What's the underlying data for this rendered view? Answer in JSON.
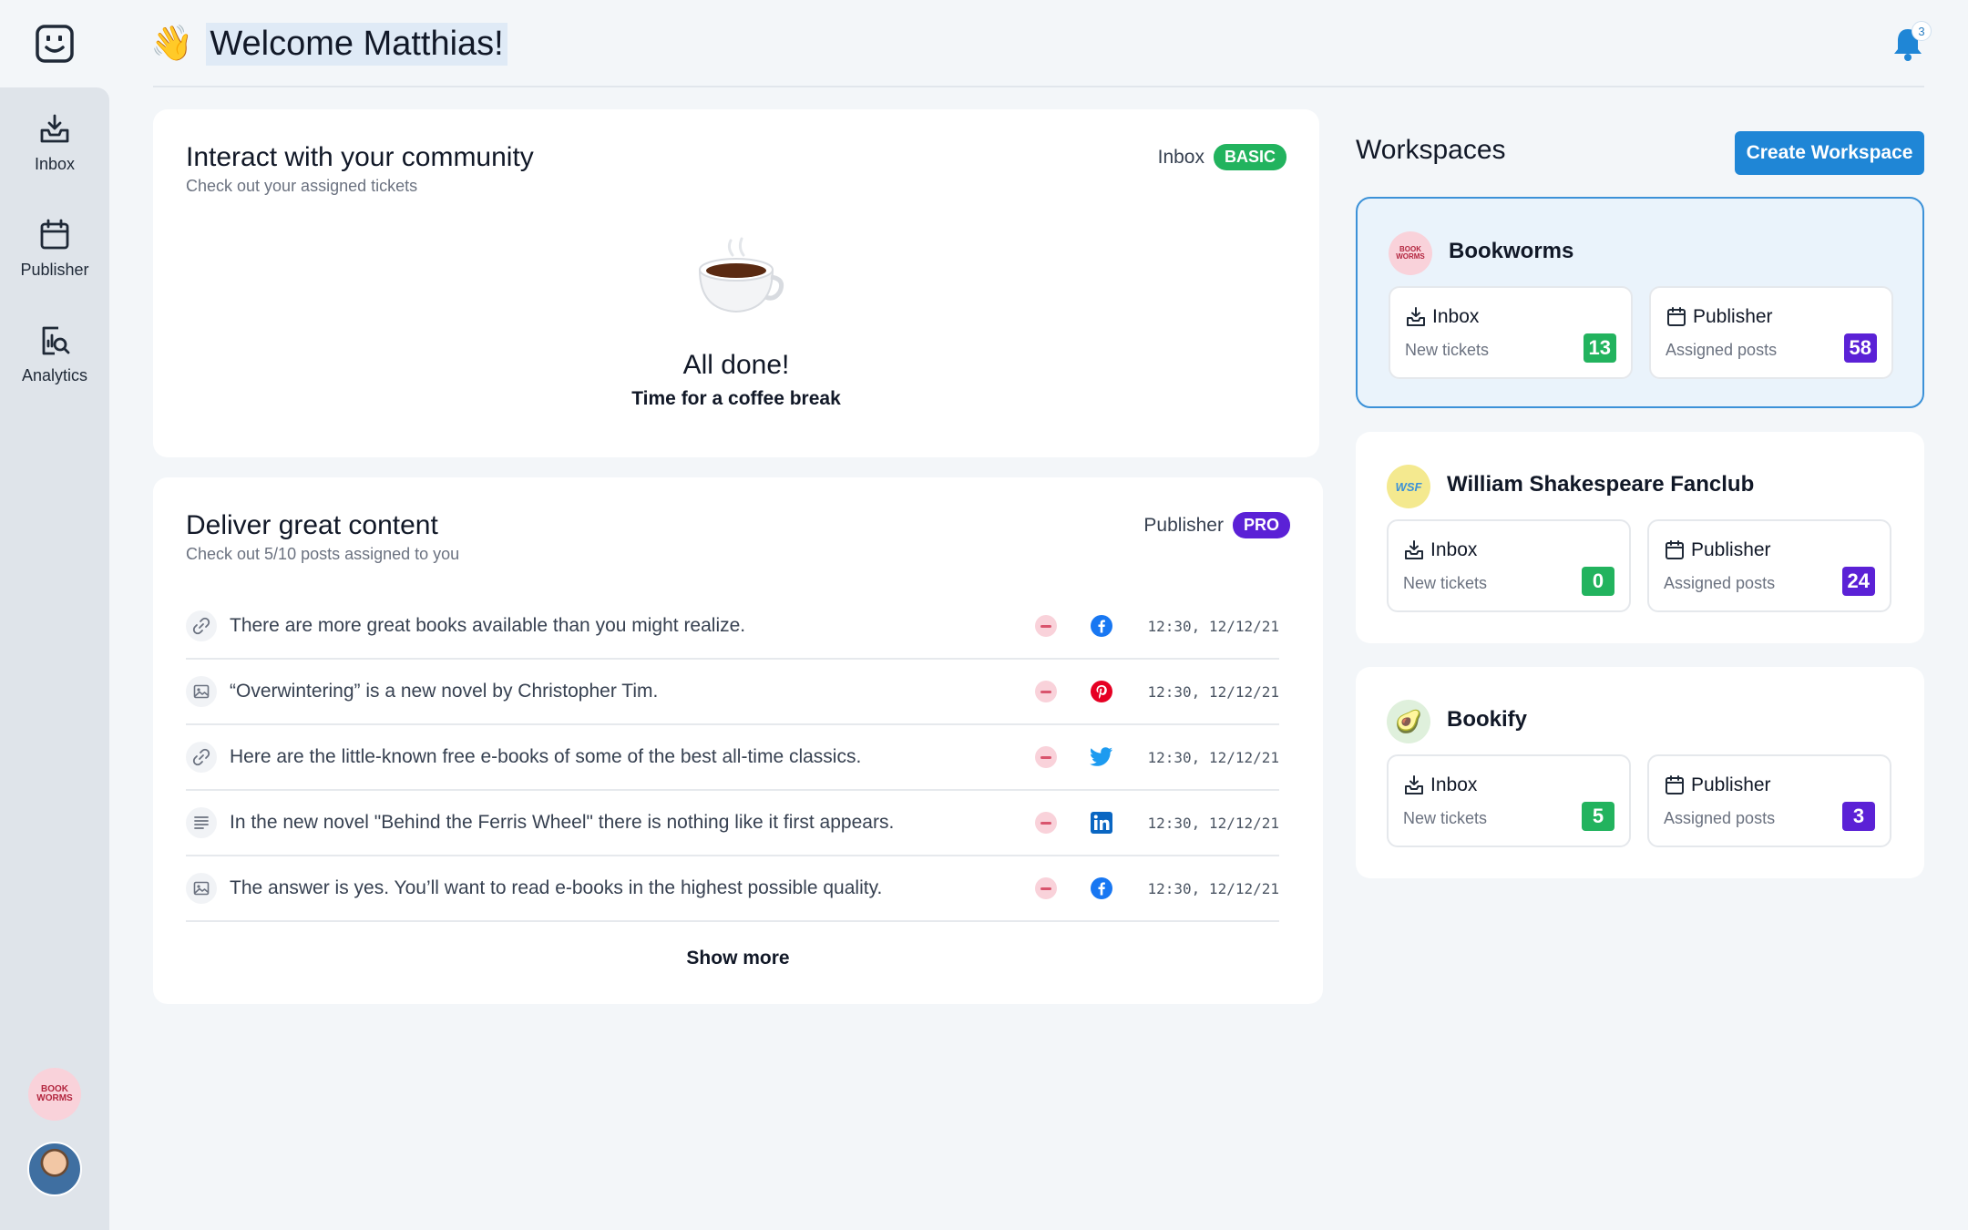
{
  "header": {
    "wave_emoji": "👋",
    "title": "Welcome Matthias!",
    "notification_count": "3"
  },
  "sidebar": {
    "items": [
      {
        "label": "Inbox",
        "icon": "inbox-icon"
      },
      {
        "label": "Publisher",
        "icon": "calendar-icon"
      },
      {
        "label": "Analytics",
        "icon": "analytics-icon"
      }
    ],
    "workspace_avatar_text": "BOOK WORMS"
  },
  "community": {
    "title": "Interact with your community",
    "subtitle": "Check out your assigned tickets",
    "tag_label": "Inbox",
    "tag_pill": "BASIC",
    "done_title": "All done!",
    "done_subtitle": "Time for a coffee break"
  },
  "content": {
    "title": "Deliver great content",
    "subtitle": "Check out 5/10 posts assigned to you",
    "tag_label": "Publisher",
    "tag_pill": "PRO",
    "posts": [
      {
        "type": "link-icon",
        "text": "There are more great books available than you might realize.",
        "network": "facebook-icon",
        "time": "12:30, 12/12/21"
      },
      {
        "type": "image-icon",
        "text": "“Overwintering” is a new novel by Christopher Tim.",
        "network": "pinterest-icon",
        "time": "12:30, 12/12/21"
      },
      {
        "type": "link-icon",
        "text": "Here are the little-known free e-books of some of the best all-time classics.",
        "network": "twitter-icon",
        "time": "12:30, 12/12/21"
      },
      {
        "type": "text-icon",
        "text": "In the new novel \"Behind the Ferris Wheel\" there is nothing like it first appears.",
        "network": "linkedin-icon",
        "time": "12:30, 12/12/21"
      },
      {
        "type": "image-icon",
        "text": "The answer is yes. You’ll want to read e-books in the highest possible quality.",
        "network": "facebook-icon",
        "time": "12:30, 12/12/21"
      }
    ],
    "show_more": "Show more"
  },
  "workspaces": {
    "heading": "Workspaces",
    "create_label": "Create Workspace",
    "inbox_label": "Inbox",
    "inbox_sub": "New tickets",
    "publisher_label": "Publisher",
    "publisher_sub": "Assigned posts",
    "items": [
      {
        "name": "Bookworms",
        "logo_text": "BOOK WORMS",
        "tickets": "13",
        "posts": "58"
      },
      {
        "name": "William Shakespeare Fanclub",
        "logo_text": "WSF",
        "tickets": "0",
        "posts": "24"
      },
      {
        "name": "Bookify",
        "logo_text": "🥑",
        "tickets": "5",
        "posts": "3"
      }
    ]
  },
  "colors": {
    "accent": "#1f86d6",
    "basic_pill": "#22b35e",
    "pro_pill": "#5b21d6",
    "tickets_badge": "#22b35e",
    "posts_badge": "#5b21d6"
  }
}
